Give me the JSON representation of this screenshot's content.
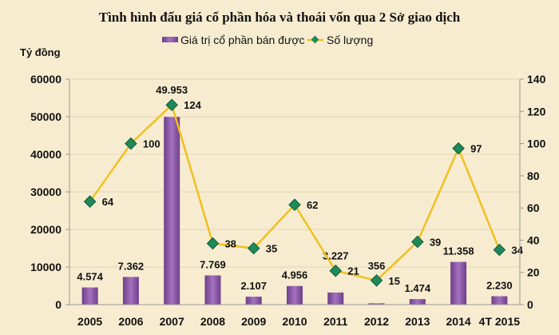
{
  "chart_data": {
    "type": "bar+line",
    "title": "Tình hình đấu giá cổ phần hóa và thoái vốn qua 2 Sở giao dịch",
    "ylabel": "Tỷ đồng",
    "categories": [
      "2005",
      "2006",
      "2007",
      "2008",
      "2009",
      "2010",
      "2011",
      "2012",
      "2013",
      "2014",
      "4T 2015"
    ],
    "series": [
      {
        "name": "Giá trị cổ phần bán được",
        "type": "bar",
        "axis": "left",
        "color": "#8e5aa8",
        "values": [
          4574,
          7362,
          49953,
          7769,
          2107,
          4956,
          3227,
          356,
          1474,
          11358,
          2230
        ],
        "labels": [
          "4.574",
          "7.362",
          "49.953",
          "7.769",
          "2.107",
          "4.956",
          "3.227",
          "356",
          "1.474",
          "11.358",
          "2.230"
        ]
      },
      {
        "name": "Số lượng",
        "type": "line",
        "axis": "right",
        "color": "#f0c020",
        "marker_color": "#1e8a5a",
        "values": [
          64,
          100,
          124,
          38,
          35,
          62,
          21,
          15,
          39,
          97,
          34
        ]
      }
    ],
    "yleft": {
      "lim": [
        0,
        60000
      ],
      "ticks": [
        "0",
        "10000",
        "20000",
        "30000",
        "40000",
        "50000",
        "60000"
      ]
    },
    "yright": {
      "lim": [
        0,
        140
      ],
      "ticks": [
        "0",
        "20",
        "40",
        "60",
        "80",
        "100",
        "120",
        "140"
      ]
    },
    "grid": true,
    "legend": "top-center"
  }
}
